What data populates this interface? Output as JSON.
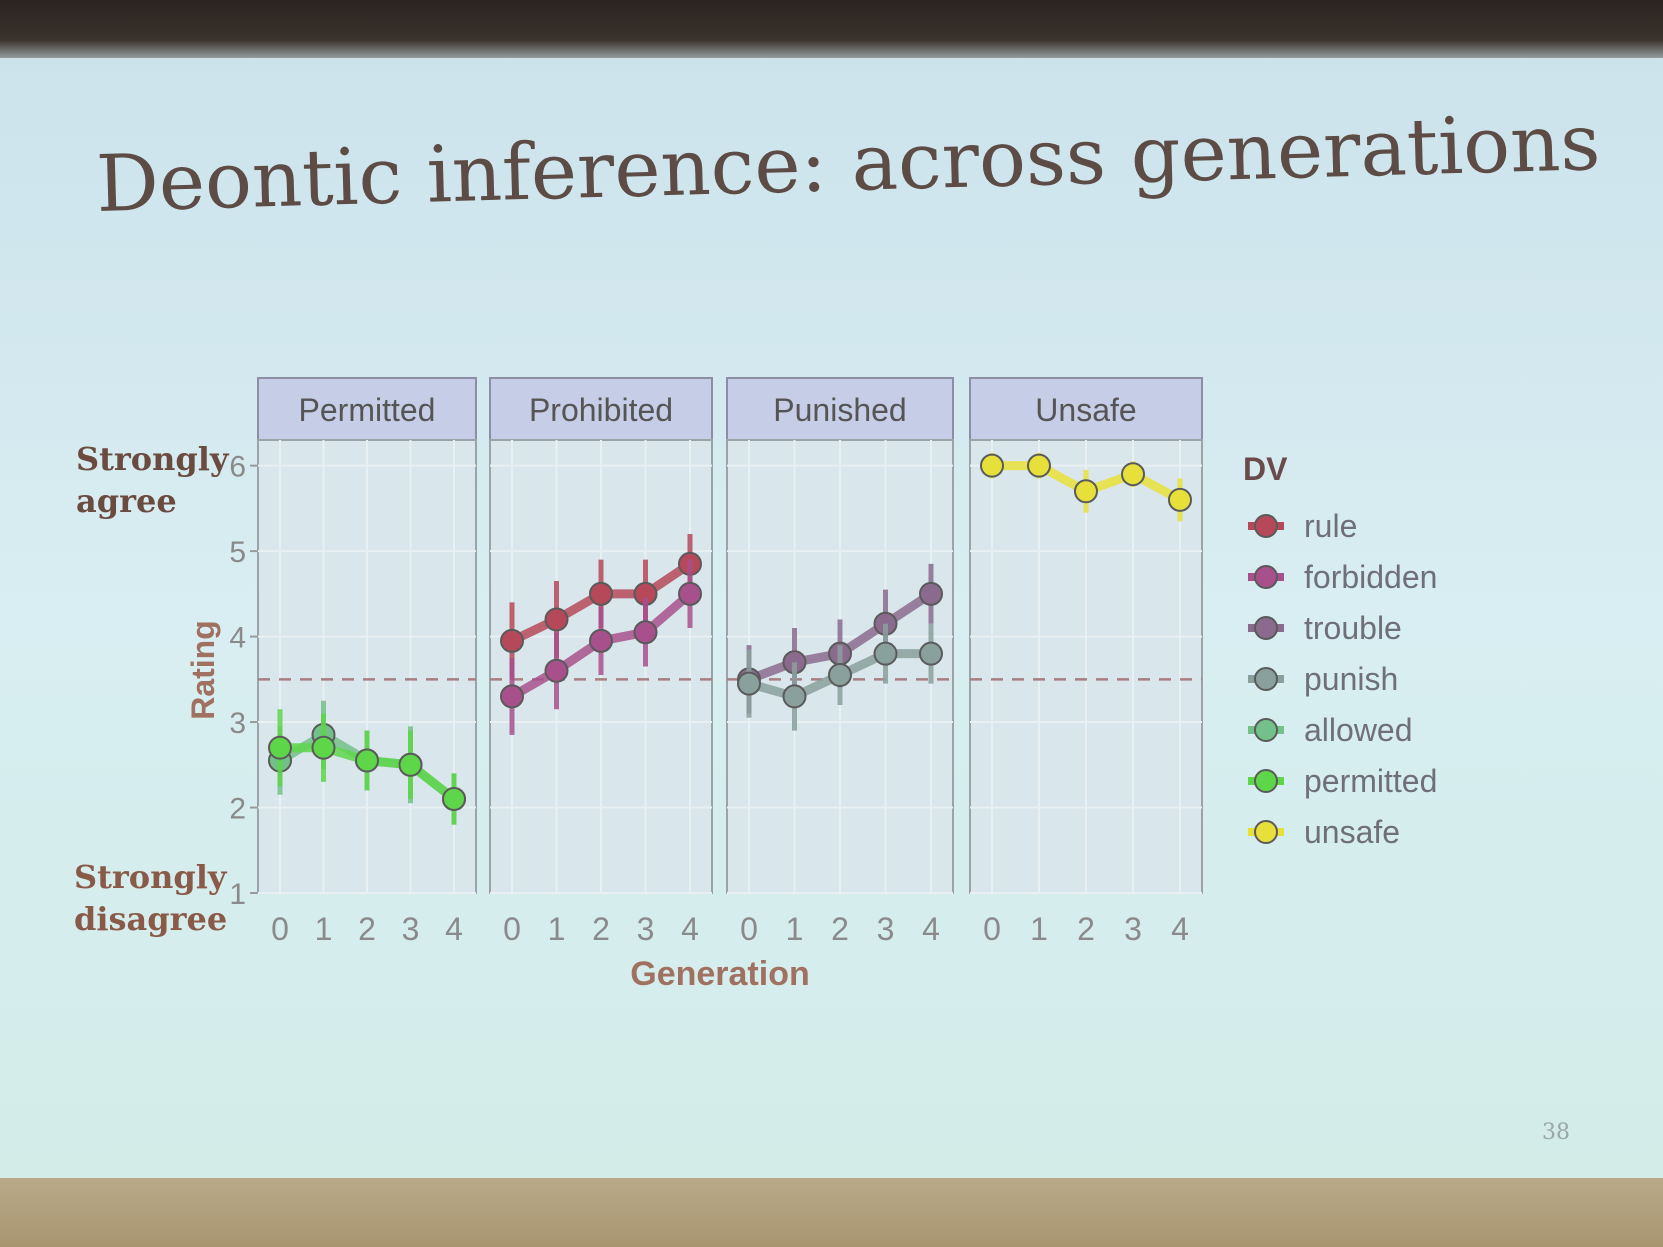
{
  "slide": {
    "title": "Deontic inference: across generations",
    "page_number": "38",
    "y_anchor_top": [
      "Strongly",
      "agree"
    ],
    "y_anchor_bottom": [
      "Strongly",
      "disagree"
    ]
  },
  "colors": {
    "rule": "#b5495a",
    "forbidden": "#a8508c",
    "trouble": "#8a6b8e",
    "punish": "#8aa09c",
    "allowed": "#74c08a",
    "permitted": "#5ed64a",
    "unsafe": "#e8e03a",
    "strip": "#c6cde6",
    "panel": "#d9e6ec"
  },
  "chart_data": {
    "type": "line",
    "xlabel": "Generation",
    "ylabel": "Rating",
    "ylim": [
      1,
      6.3
    ],
    "yticks": [
      1,
      2,
      3,
      4,
      5,
      6
    ],
    "x": [
      0,
      1,
      2,
      3,
      4
    ],
    "reference_line": 3.5,
    "legend": {
      "title": "DV",
      "entries": [
        "rule",
        "forbidden",
        "trouble",
        "punish",
        "allowed",
        "permitted",
        "unsafe"
      ],
      "placement": "right"
    },
    "panels": [
      {
        "name": "Permitted",
        "series": [
          {
            "name": "allowed",
            "values": [
              2.55,
              2.85,
              2.55,
              2.5,
              2.1
            ],
            "errors": [
              0.4,
              0.4,
              0.35,
              0.45,
              0.3
            ]
          },
          {
            "name": "permitted",
            "values": [
              2.7,
              2.7,
              2.55,
              2.5,
              2.1
            ],
            "errors": [
              0.45,
              0.4,
              0.35,
              0.4,
              0.3
            ]
          }
        ]
      },
      {
        "name": "Prohibited",
        "series": [
          {
            "name": "rule",
            "values": [
              3.95,
              4.2,
              4.5,
              4.5,
              4.85
            ],
            "errors": [
              0.45,
              0.45,
              0.4,
              0.4,
              0.35
            ]
          },
          {
            "name": "forbidden",
            "values": [
              3.3,
              3.6,
              3.95,
              4.05,
              4.5
            ],
            "errors": [
              0.45,
              0.45,
              0.4,
              0.4,
              0.4
            ]
          }
        ]
      },
      {
        "name": "Punished",
        "series": [
          {
            "name": "trouble",
            "values": [
              3.5,
              3.7,
              3.8,
              4.15,
              4.5
            ],
            "errors": [
              0.4,
              0.4,
              0.4,
              0.4,
              0.35
            ]
          },
          {
            "name": "punish",
            "values": [
              3.45,
              3.3,
              3.55,
              3.8,
              3.8
            ],
            "errors": [
              0.4,
              0.4,
              0.35,
              0.35,
              0.35
            ]
          }
        ]
      },
      {
        "name": "Unsafe",
        "series": [
          {
            "name": "unsafe",
            "values": [
              6.0,
              6.0,
              5.7,
              5.9,
              5.6
            ],
            "errors": [
              0.15,
              0.15,
              0.25,
              0.15,
              0.25
            ]
          }
        ]
      }
    ]
  }
}
